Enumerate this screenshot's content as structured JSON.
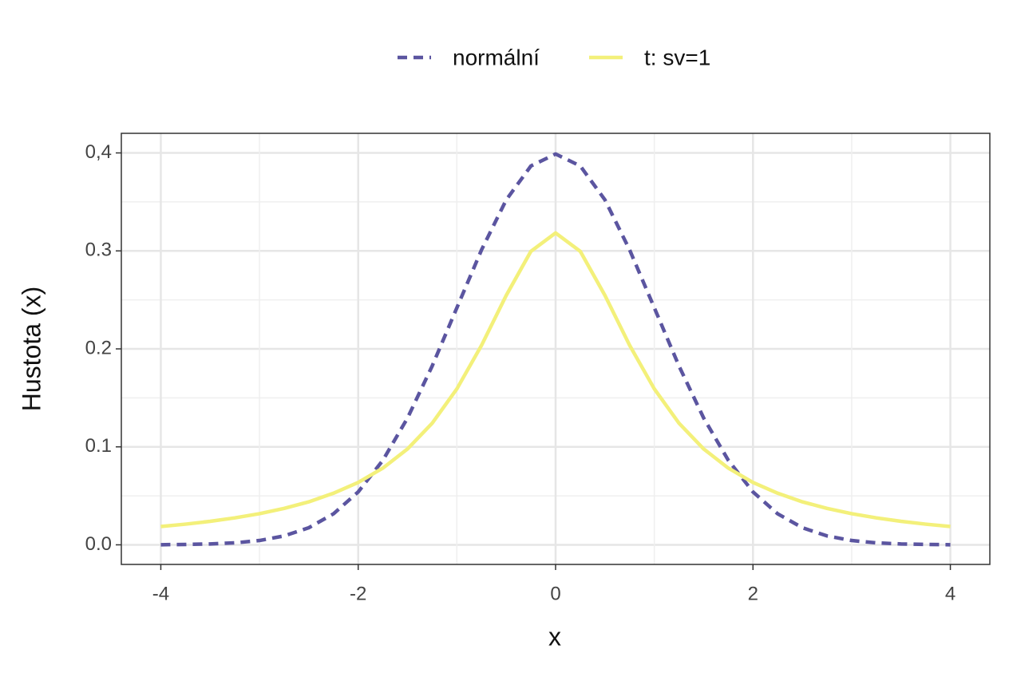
{
  "chart_data": {
    "type": "line",
    "x_label": "x",
    "y_label": "Hustota (x)",
    "x": [
      -4,
      -3.75,
      -3.5,
      -3.25,
      -3,
      -2.75,
      -2.5,
      -2.25,
      -2,
      -1.75,
      -1.5,
      -1.25,
      -1,
      -0.75,
      -0.5,
      -0.25,
      0,
      0.25,
      0.5,
      0.75,
      1,
      1.25,
      1.5,
      1.75,
      2,
      2.25,
      2.5,
      2.75,
      3,
      3.25,
      3.5,
      3.75,
      4
    ],
    "series": [
      {
        "name": "normální",
        "color": "#5b55a0",
        "dash": true,
        "values": [
          0.0001,
          0.0004,
          0.0009,
          0.002,
          0.0044,
          0.0091,
          0.0175,
          0.0317,
          0.054,
          0.0863,
          0.1295,
          0.1826,
          0.242,
          0.3011,
          0.3521,
          0.3867,
          0.3989,
          0.3867,
          0.3521,
          0.3011,
          0.242,
          0.1826,
          0.1295,
          0.0863,
          0.054,
          0.0317,
          0.0175,
          0.0091,
          0.0044,
          0.002,
          0.0009,
          0.0004,
          0.0001
        ]
      },
      {
        "name": "t: sv=1",
        "color": "#f3f07a",
        "dash": false,
        "values": [
          0.0187,
          0.0211,
          0.024,
          0.0275,
          0.0318,
          0.0372,
          0.0439,
          0.0527,
          0.0637,
          0.0783,
          0.0979,
          0.1242,
          0.1592,
          0.2037,
          0.2546,
          0.2996,
          0.3183,
          0.2996,
          0.2546,
          0.2037,
          0.1592,
          0.1242,
          0.0979,
          0.0783,
          0.0637,
          0.0527,
          0.0439,
          0.0372,
          0.0318,
          0.0275,
          0.024,
          0.0211,
          0.0187
        ]
      }
    ],
    "xlim": [
      -4.4,
      4.4
    ],
    "xticks": [
      -4,
      -2,
      0,
      2,
      4
    ],
    "ylim": [
      -0.02,
      0.42
    ],
    "yticks": [
      {
        "value": 0,
        "label": "0.0"
      },
      0.1,
      0.2,
      0.3,
      {
        "value": 0.4,
        "label": "0,4"
      }
    ],
    "grid": true,
    "legend": "top"
  }
}
